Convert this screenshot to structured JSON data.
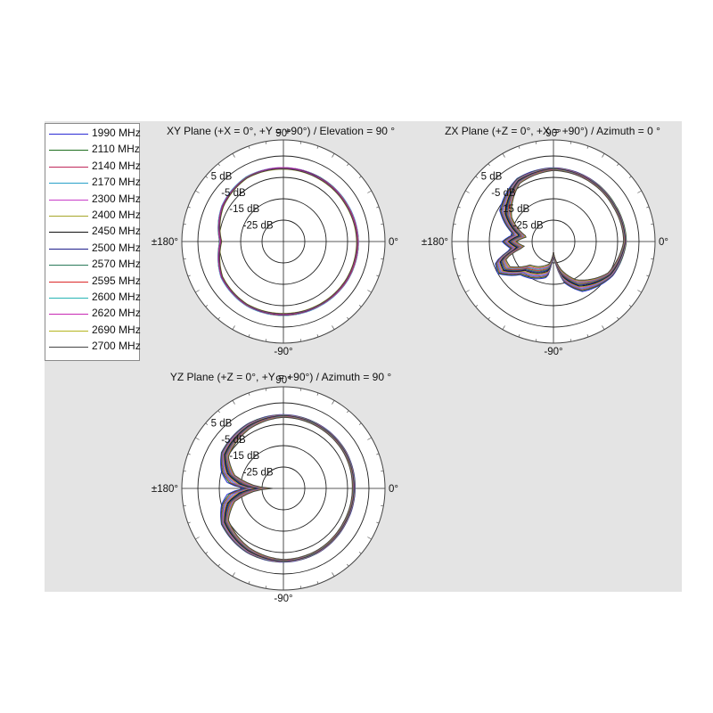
{
  "chart_data": [
    {
      "type": "polar-line",
      "title": "XY Plane (+X = 0°, +Y = +90°) / Elevation = 90 °",
      "angle_labels": {
        "top": "90°",
        "bottom": "-90°",
        "left": "±180°",
        "right": "0°"
      },
      "ring_labels": [
        "5 dB",
        "-5 dB",
        "-15 dB",
        "-25 dB"
      ],
      "r_range_db": [
        -35,
        5
      ],
      "angles_deg": [
        0,
        30,
        60,
        90,
        120,
        150,
        170,
        180,
        190,
        210,
        240,
        270,
        300,
        330
      ],
      "series": [
        {
          "name": "1990 MHz",
          "color": "#2b2bd4",
          "values": [
            0.0,
            -0.5,
            -0.5,
            -0.5,
            -0.2,
            -1.8,
            -4.2,
            -5.5,
            -4.2,
            -1.5,
            -0.5,
            -0.5,
            -0.5,
            0.0
          ]
        },
        {
          "name": "2110 MHz",
          "color": "#1e6e1e",
          "values": [
            0.1,
            -0.4,
            -0.4,
            -0.6,
            -0.2,
            -1.8,
            -4.0,
            -5.2,
            -4.0,
            -1.4,
            -0.4,
            -0.4,
            -0.4,
            0.1
          ]
        },
        {
          "name": "2140 MHz",
          "color": "#c0285a",
          "values": [
            -0.1,
            -0.6,
            -0.7,
            -0.6,
            -0.4,
            -2.0,
            -4.3,
            -5.6,
            -4.3,
            -1.6,
            -0.6,
            -0.6,
            -0.6,
            -0.1
          ]
        },
        {
          "name": "2170 MHz",
          "color": "#28a0c8",
          "values": [
            0.1,
            -0.3,
            -0.5,
            -0.5,
            -0.1,
            -1.7,
            -4.1,
            -5.3,
            -4.1,
            -1.3,
            -0.3,
            -0.5,
            -0.3,
            0.1
          ]
        },
        {
          "name": "2300 MHz",
          "color": "#c83cc8",
          "values": [
            0.0,
            -0.5,
            -0.6,
            -0.4,
            -0.3,
            -1.9,
            -4.2,
            -5.4,
            -4.2,
            -1.5,
            -0.5,
            -0.6,
            -0.5,
            0.0
          ]
        },
        {
          "name": "2400 MHz",
          "color": "#a6a62a",
          "values": [
            -0.2,
            -0.7,
            -0.8,
            -0.8,
            -0.4,
            -2.1,
            -4.4,
            -5.7,
            -4.4,
            -1.7,
            -0.7,
            -0.8,
            -0.7,
            -0.2
          ]
        },
        {
          "name": "2450 MHz",
          "color": "#111111",
          "values": [
            -0.4,
            -0.9,
            -0.8,
            -0.7,
            -0.6,
            -2.2,
            -4.5,
            -5.8,
            -4.5,
            -1.8,
            -0.8,
            -0.8,
            -0.8,
            -0.4
          ]
        },
        {
          "name": "2500 MHz",
          "color": "#1e1e8c",
          "values": [
            -0.3,
            -0.8,
            -0.9,
            -0.8,
            -0.5,
            -2.1,
            -4.4,
            -5.7,
            -4.4,
            -1.7,
            -0.8,
            -0.9,
            -0.8,
            -0.3
          ]
        },
        {
          "name": "2570 MHz",
          "color": "#2a7a5a",
          "values": [
            -0.5,
            -1.0,
            -1.0,
            -0.9,
            -0.6,
            -2.3,
            -4.6,
            -5.9,
            -4.6,
            -1.9,
            -0.9,
            -1.0,
            -0.9,
            -0.5
          ]
        },
        {
          "name": "2595 MHz",
          "color": "#dc2828",
          "values": [
            -0.4,
            -0.9,
            -1.0,
            -0.9,
            -0.6,
            -2.2,
            -4.5,
            -5.8,
            -4.5,
            -1.8,
            -0.9,
            -1.0,
            -0.9,
            -0.4
          ]
        },
        {
          "name": "2600 MHz",
          "color": "#28b4b4",
          "values": [
            -0.6,
            -1.1,
            -1.1,
            -1.0,
            -0.7,
            -2.4,
            -4.7,
            -6.0,
            -4.7,
            -2.0,
            -1.0,
            -1.1,
            -1.0,
            -0.6
          ]
        },
        {
          "name": "2620 MHz",
          "color": "#c828b4",
          "values": [
            -0.5,
            -1.0,
            -1.1,
            -0.9,
            -0.7,
            -2.3,
            -4.6,
            -5.9,
            -4.6,
            -1.9,
            -1.0,
            -1.1,
            -1.0,
            -0.5
          ]
        },
        {
          "name": "2690 MHz",
          "color": "#b4b41e",
          "values": [
            -0.8,
            -1.3,
            -1.4,
            -1.2,
            -0.9,
            -2.6,
            -4.9,
            -6.2,
            -4.9,
            -2.2,
            -1.2,
            -1.4,
            -1.2,
            -0.8
          ]
        },
        {
          "name": "2700 MHz",
          "color": "#444444",
          "values": [
            -0.7,
            -1.2,
            -1.3,
            -1.1,
            -0.8,
            -2.5,
            -4.8,
            -6.1,
            -4.8,
            -2.1,
            -1.1,
            -1.3,
            -1.1,
            -0.7
          ]
        }
      ]
    },
    {
      "type": "polar-line",
      "title": "ZX Plane (+Z = 0°, +X = +90°) / Azimuth = 0 °",
      "angle_labels": {
        "top": "90°",
        "bottom": "-90°",
        "left": "±180°",
        "right": "0°"
      },
      "ring_labels": [
        "5 dB",
        "-5 dB",
        "-15 dB",
        "-25 dB"
      ],
      "r_range_db": [
        -35,
        5
      ],
      "angles_deg": [
        0,
        30,
        60,
        90,
        120,
        150,
        170,
        180,
        190,
        200,
        210,
        225,
        240,
        260,
        270,
        285,
        300,
        330
      ],
      "series": [
        {
          "name": "1990 MHz",
          "color": "#2b2bd4",
          "values": [
            -1.0,
            -1.5,
            -1.0,
            -0.5,
            -1.0,
            -6.0,
            -16.0,
            -11.0,
            -15.0,
            -6.0,
            -5.0,
            -13.0,
            -15.0,
            -18.0,
            -30.0,
            -15.0,
            -8.0,
            -3.0
          ]
        },
        {
          "name": "2110 MHz",
          "color": "#1e6e1e",
          "values": [
            -0.9,
            -1.4,
            -1.1,
            -0.6,
            -1.2,
            -6.5,
            -16.5,
            -11.5,
            -15.5,
            -6.4,
            -5.5,
            -13.5,
            -15.5,
            -18.5,
            -30.0,
            -15.5,
            -8.5,
            -3.2
          ]
        },
        {
          "name": "2140 MHz",
          "color": "#c0285a",
          "values": [
            -1.1,
            -1.6,
            -1.2,
            -0.7,
            -1.4,
            -7.0,
            -17.0,
            -12.0,
            -16.0,
            -6.8,
            -6.0,
            -14.0,
            -16.0,
            -19.0,
            -30.0,
            -16.0,
            -9.0,
            -3.4
          ]
        },
        {
          "name": "2170 MHz",
          "color": "#28a0c8",
          "values": [
            -1.2,
            -1.7,
            -1.3,
            -0.8,
            -1.6,
            -7.5,
            -17.5,
            -12.5,
            -16.5,
            -7.2,
            -6.5,
            -14.5,
            -16.5,
            -19.5,
            -30.0,
            -16.5,
            -9.5,
            -3.6
          ]
        },
        {
          "name": "2300 MHz",
          "color": "#c83cc8",
          "values": [
            -1.3,
            -1.8,
            -1.4,
            -0.9,
            -1.8,
            -8.0,
            -18.0,
            -13.0,
            -17.0,
            -7.6,
            -7.0,
            -15.0,
            -17.0,
            -20.0,
            -30.0,
            -17.0,
            -10.0,
            -3.8
          ]
        },
        {
          "name": "2400 MHz",
          "color": "#a6a62a",
          "values": [
            -1.4,
            -1.9,
            -1.5,
            -1.0,
            -2.0,
            -8.5,
            -18.5,
            -13.5,
            -17.5,
            -8.0,
            -7.5,
            -15.5,
            -17.5,
            -20.5,
            -30.0,
            -17.5,
            -10.5,
            -4.0
          ]
        },
        {
          "name": "2450 MHz",
          "color": "#111111",
          "values": [
            -1.5,
            -2.0,
            -1.6,
            -1.1,
            -2.2,
            -9.0,
            -19.0,
            -14.0,
            -18.0,
            -8.4,
            -8.0,
            -16.0,
            -18.0,
            -21.0,
            -30.0,
            -18.0,
            -11.0,
            -4.2
          ]
        },
        {
          "name": "2500 MHz",
          "color": "#1e1e8c",
          "values": [
            -1.6,
            -2.1,
            -1.7,
            -1.2,
            -2.4,
            -9.5,
            -19.5,
            -14.5,
            -18.5,
            -8.8,
            -8.5,
            -16.5,
            -18.5,
            -21.5,
            -30.0,
            -18.5,
            -11.5,
            -4.4
          ]
        },
        {
          "name": "2570 MHz",
          "color": "#2a7a5a",
          "values": [
            -1.7,
            -2.2,
            -1.8,
            -1.3,
            -2.6,
            -10.0,
            -20.0,
            -15.0,
            -19.0,
            -9.2,
            -9.0,
            -17.0,
            -19.0,
            -22.0,
            -30.0,
            -19.0,
            -12.0,
            -4.6
          ]
        },
        {
          "name": "2595 MHz",
          "color": "#dc2828",
          "values": [
            -1.8,
            -2.3,
            -1.9,
            -1.4,
            -2.8,
            -10.5,
            -20.5,
            -15.5,
            -19.5,
            -9.6,
            -9.5,
            -17.5,
            -19.5,
            -22.5,
            -30.0,
            -19.5,
            -12.5,
            -4.8
          ]
        },
        {
          "name": "2600 MHz",
          "color": "#28b4b4",
          "values": [
            -1.9,
            -2.4,
            -2.0,
            -1.5,
            -3.0,
            -11.0,
            -21.0,
            -16.0,
            -20.0,
            -10.0,
            -10.0,
            -18.0,
            -20.0,
            -23.0,
            -30.0,
            -20.0,
            -13.0,
            -5.0
          ]
        },
        {
          "name": "2620 MHz",
          "color": "#c828b4",
          "values": [
            -2.0,
            -2.5,
            -2.1,
            -1.6,
            -3.2,
            -11.5,
            -21.5,
            -16.5,
            -20.5,
            -10.4,
            -10.5,
            -18.5,
            -20.5,
            -23.5,
            -30.0,
            -20.5,
            -13.5,
            -5.2
          ]
        },
        {
          "name": "2690 MHz",
          "color": "#b4b41e",
          "values": [
            -2.1,
            -2.6,
            -2.2,
            -1.7,
            -3.4,
            -12.0,
            -22.0,
            -17.0,
            -21.0,
            -10.8,
            -11.0,
            -19.0,
            -21.0,
            -24.0,
            -30.0,
            -21.0,
            -14.0,
            -5.4
          ]
        },
        {
          "name": "2700 MHz",
          "color": "#444444",
          "values": [
            -2.2,
            -2.7,
            -2.3,
            -1.8,
            -3.6,
            -12.5,
            -22.5,
            -17.5,
            -21.5,
            -11.2,
            -11.5,
            -19.5,
            -21.5,
            -24.5,
            -30.0,
            -21.5,
            -14.5,
            -5.6
          ]
        }
      ]
    },
    {
      "type": "polar-line",
      "title": "YZ Plane (+Z = 0°, +Y = +90°) / Azimuth = 90 °",
      "angle_labels": {
        "top": "90°",
        "bottom": "-90°",
        "left": "±180°",
        "right": "0°"
      },
      "ring_labels": [
        "5 dB",
        "-5 dB",
        "-15 dB",
        "-25 dB"
      ],
      "r_range_db": [
        -35,
        5
      ],
      "angles_deg": [
        0,
        30,
        60,
        90,
        120,
        150,
        165,
        175,
        180,
        185,
        195,
        210,
        240,
        270,
        300,
        330
      ],
      "series": [
        {
          "name": "1990 MHz",
          "color": "#2b2bd4",
          "values": [
            -1.5,
            -1.0,
            -0.8,
            -0.5,
            -0.5,
            -1.5,
            -5.0,
            -9.0,
            -17.0,
            -9.0,
            -5.0,
            -1.5,
            -0.5,
            -0.5,
            -0.8,
            -1.5
          ]
        },
        {
          "name": "2110 MHz",
          "color": "#1e6e1e",
          "values": [
            -1.6,
            -1.1,
            -0.9,
            -0.6,
            -0.6,
            -1.7,
            -5.5,
            -10.0,
            -18.0,
            -10.0,
            -5.5,
            -1.7,
            -0.6,
            -0.6,
            -0.9,
            -1.6
          ]
        },
        {
          "name": "2140 MHz",
          "color": "#c0285a",
          "values": [
            -1.7,
            -1.2,
            -1.0,
            -0.7,
            -0.8,
            -2.0,
            -6.0,
            -11.0,
            -19.0,
            -11.0,
            -6.0,
            -2.0,
            -0.8,
            -0.7,
            -1.0,
            -1.7
          ]
        },
        {
          "name": "2170 MHz",
          "color": "#28a0c8",
          "values": [
            -1.8,
            -1.3,
            -1.1,
            -0.8,
            -1.0,
            -2.3,
            -6.5,
            -12.0,
            -20.0,
            -12.0,
            -6.5,
            -2.3,
            -1.0,
            -0.8,
            -1.1,
            -1.8
          ]
        },
        {
          "name": "2300 MHz",
          "color": "#c83cc8",
          "values": [
            -1.9,
            -1.4,
            -1.2,
            -0.9,
            -1.2,
            -2.6,
            -7.0,
            -13.0,
            -21.0,
            -13.0,
            -7.0,
            -2.6,
            -1.2,
            -0.9,
            -1.2,
            -1.9
          ]
        },
        {
          "name": "2400 MHz",
          "color": "#a6a62a",
          "values": [
            -2.0,
            -1.5,
            -1.3,
            -1.0,
            -1.4,
            -2.9,
            -7.5,
            -14.0,
            -22.0,
            -14.0,
            -7.5,
            -2.9,
            -1.4,
            -1.0,
            -1.3,
            -2.0
          ]
        },
        {
          "name": "2450 MHz",
          "color": "#111111",
          "values": [
            -2.1,
            -1.6,
            -1.4,
            -1.1,
            -1.6,
            -3.2,
            -8.0,
            -15.0,
            -23.0,
            -15.0,
            -8.0,
            -3.2,
            -1.6,
            -1.1,
            -1.4,
            -2.1
          ]
        },
        {
          "name": "2500 MHz",
          "color": "#1e1e8c",
          "values": [
            -2.2,
            -1.7,
            -1.5,
            -1.2,
            -1.8,
            -3.5,
            -8.5,
            -16.0,
            -24.0,
            -16.0,
            -8.5,
            -3.5,
            -1.8,
            -1.2,
            -1.5,
            -2.2
          ]
        },
        {
          "name": "2570 MHz",
          "color": "#2a7a5a",
          "values": [
            -2.3,
            -1.8,
            -1.6,
            -1.3,
            -2.0,
            -3.8,
            -9.0,
            -17.0,
            -25.0,
            -17.0,
            -9.0,
            -3.8,
            -2.0,
            -1.3,
            -1.6,
            -2.3
          ]
        },
        {
          "name": "2595 MHz",
          "color": "#dc2828",
          "values": [
            -2.4,
            -1.9,
            -1.7,
            -1.4,
            -2.2,
            -4.1,
            -9.5,
            -18.0,
            -26.0,
            -18.0,
            -9.5,
            -4.1,
            -2.2,
            -1.4,
            -1.7,
            -2.4
          ]
        },
        {
          "name": "2600 MHz",
          "color": "#28b4b4",
          "values": [
            -2.5,
            -2.0,
            -1.8,
            -1.5,
            -2.4,
            -4.4,
            -10.0,
            -19.0,
            -27.0,
            -19.0,
            -10.0,
            -4.4,
            -2.4,
            -1.5,
            -1.8,
            -2.5
          ]
        },
        {
          "name": "2620 MHz",
          "color": "#c828b4",
          "values": [
            -2.6,
            -2.1,
            -1.9,
            -1.6,
            -2.6,
            -4.7,
            -10.5,
            -20.0,
            -28.0,
            -20.0,
            -10.5,
            -4.7,
            -2.6,
            -1.6,
            -1.9,
            -2.6
          ]
        },
        {
          "name": "2690 MHz",
          "color": "#b4b41e",
          "values": [
            -2.7,
            -2.2,
            -2.0,
            -1.7,
            -2.8,
            -5.0,
            -11.0,
            -21.0,
            -29.0,
            -21.0,
            -11.0,
            -5.0,
            -2.8,
            -1.7,
            -2.0,
            -2.7
          ]
        },
        {
          "name": "2700 MHz",
          "color": "#444444",
          "values": [
            -2.8,
            -2.3,
            -2.1,
            -1.8,
            -3.0,
            -5.3,
            -11.5,
            -22.0,
            -30.0,
            -22.0,
            -11.5,
            -5.3,
            -3.0,
            -1.8,
            -2.1,
            -2.8
          ]
        }
      ]
    }
  ]
}
